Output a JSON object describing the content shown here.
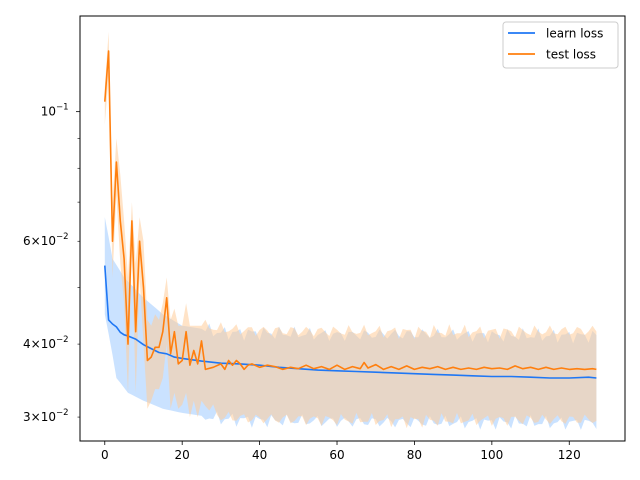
{
  "chart_data": {
    "type": "line",
    "title": "",
    "xlabel": "",
    "ylabel": "",
    "xlim": [
      -6.4,
      134.4
    ],
    "ylim": [
      0.0273,
      0.1458
    ],
    "yscale": "log",
    "grid": false,
    "legend": {
      "placement": "top-right",
      "entries": [
        "learn loss",
        "test loss"
      ]
    },
    "x_ticks": [
      0,
      20,
      40,
      60,
      80,
      100,
      120
    ],
    "x_tick_labels": [
      "0",
      "20",
      "40",
      "60",
      "80",
      "100",
      "120"
    ],
    "y_major_ticks": [
      0.1
    ],
    "y_minor_labeled_ticks": [
      {
        "value": 0.06,
        "mantissa": "6",
        "base": "10",
        "exp": "−2"
      },
      {
        "value": 0.04,
        "mantissa": "4",
        "base": "10",
        "exp": "−2"
      },
      {
        "value": 0.03,
        "mantissa": "3",
        "base": "10",
        "exp": "−2"
      }
    ],
    "y_minor_unlabeled_ticks": [
      0.05,
      0.07,
      0.08,
      0.09
    ],
    "y_major_label": {
      "base": "10",
      "exp": "−1"
    },
    "series": [
      {
        "name": "learn loss",
        "color": "#1f77f4",
        "band_color": "#b3d5ff",
        "points": [
          [
            0,
            0.0545
          ],
          [
            1,
            0.044
          ],
          [
            2,
            0.0433
          ],
          [
            3,
            0.0428
          ],
          [
            4,
            0.0419
          ],
          [
            5,
            0.0415
          ],
          [
            6,
            0.0413
          ],
          [
            8,
            0.0408
          ],
          [
            10,
            0.0399
          ],
          [
            12,
            0.0393
          ],
          [
            14,
            0.0387
          ],
          [
            16,
            0.0385
          ],
          [
            18,
            0.038
          ],
          [
            20,
            0.0378
          ],
          [
            25,
            0.0374
          ],
          [
            30,
            0.0371
          ],
          [
            35,
            0.037
          ],
          [
            40,
            0.0368
          ],
          [
            45,
            0.0365
          ],
          [
            50,
            0.0363
          ],
          [
            55,
            0.0361
          ],
          [
            60,
            0.036
          ],
          [
            65,
            0.0359
          ],
          [
            70,
            0.0358
          ],
          [
            75,
            0.0357
          ],
          [
            80,
            0.0356
          ],
          [
            85,
            0.0355
          ],
          [
            90,
            0.0354
          ],
          [
            95,
            0.0353
          ],
          [
            100,
            0.0352
          ],
          [
            105,
            0.0352
          ],
          [
            110,
            0.0351
          ],
          [
            115,
            0.035
          ],
          [
            120,
            0.035
          ],
          [
            125,
            0.0351
          ],
          [
            127,
            0.035
          ]
        ],
        "band_upper": [
          [
            0,
            0.066
          ],
          [
            2,
            0.056
          ],
          [
            5,
            0.052
          ],
          [
            10,
            0.048
          ],
          [
            15,
            0.045
          ],
          [
            20,
            0.043
          ],
          [
            25,
            0.0425
          ],
          [
            30,
            0.0418
          ],
          [
            40,
            0.0418
          ],
          [
            60,
            0.0415
          ],
          [
            80,
            0.0416
          ],
          [
            100,
            0.0414
          ],
          [
            127,
            0.0413
          ]
        ],
        "band_lower": [
          [
            0,
            0.045
          ],
          [
            3,
            0.035
          ],
          [
            6,
            0.033
          ],
          [
            10,
            0.032
          ],
          [
            15,
            0.031
          ],
          [
            20,
            0.0305
          ],
          [
            30,
            0.0298
          ],
          [
            40,
            0.0296
          ],
          [
            60,
            0.0295
          ],
          [
            80,
            0.0294
          ],
          [
            100,
            0.0294
          ],
          [
            127,
            0.0293
          ]
        ]
      },
      {
        "name": "test loss",
        "color": "#ff7f0e",
        "band_color": "#ffcc99",
        "points": [
          [
            0,
            0.104
          ],
          [
            1,
            0.127
          ],
          [
            2,
            0.06
          ],
          [
            3,
            0.082
          ],
          [
            4,
            0.065
          ],
          [
            5,
            0.056
          ],
          [
            6,
            0.04
          ],
          [
            7,
            0.065
          ],
          [
            8,
            0.042
          ],
          [
            9,
            0.06
          ],
          [
            10,
            0.05
          ],
          [
            11,
            0.0375
          ],
          [
            12,
            0.038
          ],
          [
            13,
            0.0395
          ],
          [
            14,
            0.0395
          ],
          [
            15,
            0.042
          ],
          [
            16,
            0.048
          ],
          [
            17,
            0.0385
          ],
          [
            18,
            0.042
          ],
          [
            19,
            0.037
          ],
          [
            20,
            0.0375
          ],
          [
            21,
            0.042
          ],
          [
            22,
            0.0368
          ],
          [
            23,
            0.039
          ],
          [
            24,
            0.037
          ],
          [
            25,
            0.0405
          ],
          [
            26,
            0.0362
          ],
          [
            28,
            0.0365
          ],
          [
            30,
            0.037
          ],
          [
            31,
            0.0362
          ],
          [
            32,
            0.0375
          ],
          [
            33,
            0.0368
          ],
          [
            34,
            0.0375
          ],
          [
            35,
            0.037
          ],
          [
            36,
            0.0362
          ],
          [
            37,
            0.0368
          ],
          [
            38,
            0.037
          ],
          [
            40,
            0.0365
          ],
          [
            42,
            0.0368
          ],
          [
            44,
            0.0366
          ],
          [
            46,
            0.0362
          ],
          [
            48,
            0.0365
          ],
          [
            50,
            0.0363
          ],
          [
            52,
            0.0368
          ],
          [
            54,
            0.0363
          ],
          [
            56,
            0.0366
          ],
          [
            58,
            0.0362
          ],
          [
            60,
            0.0368
          ],
          [
            62,
            0.0362
          ],
          [
            64,
            0.0366
          ],
          [
            66,
            0.0363
          ],
          [
            67,
            0.0372
          ],
          [
            68,
            0.0364
          ],
          [
            70,
            0.0369
          ],
          [
            72,
            0.0362
          ],
          [
            74,
            0.0366
          ],
          [
            76,
            0.0362
          ],
          [
            78,
            0.0367
          ],
          [
            80,
            0.0362
          ],
          [
            82,
            0.0365
          ],
          [
            84,
            0.0363
          ],
          [
            86,
            0.0366
          ],
          [
            88,
            0.0362
          ],
          [
            90,
            0.0365
          ],
          [
            92,
            0.0362
          ],
          [
            94,
            0.0364
          ],
          [
            96,
            0.0362
          ],
          [
            98,
            0.0365
          ],
          [
            100,
            0.0363
          ],
          [
            102,
            0.0364
          ],
          [
            104,
            0.0362
          ],
          [
            106,
            0.0367
          ],
          [
            108,
            0.0363
          ],
          [
            110,
            0.0365
          ],
          [
            112,
            0.0362
          ],
          [
            114,
            0.0365
          ],
          [
            116,
            0.0362
          ],
          [
            118,
            0.0364
          ],
          [
            120,
            0.0362
          ],
          [
            122,
            0.0363
          ],
          [
            124,
            0.0362
          ],
          [
            126,
            0.0363
          ],
          [
            127,
            0.0362
          ]
        ],
        "band_upper": [
          [
            0,
            0.11
          ],
          [
            1,
            0.137
          ],
          [
            2,
            0.07
          ],
          [
            3,
            0.09
          ],
          [
            4,
            0.078
          ],
          [
            5,
            0.065
          ],
          [
            6,
            0.052
          ],
          [
            7,
            0.07
          ],
          [
            8,
            0.055
          ],
          [
            9,
            0.066
          ],
          [
            10,
            0.06
          ],
          [
            11,
            0.044
          ],
          [
            12,
            0.043
          ],
          [
            13,
            0.045
          ],
          [
            14,
            0.044
          ],
          [
            15,
            0.047
          ],
          [
            16,
            0.052
          ],
          [
            17,
            0.044
          ],
          [
            18,
            0.046
          ],
          [
            19,
            0.043
          ],
          [
            20,
            0.043
          ],
          [
            21,
            0.047
          ],
          [
            22,
            0.043
          ],
          [
            23,
            0.043
          ],
          [
            24,
            0.043
          ],
          [
            25,
            0.043
          ],
          [
            30,
            0.0425
          ],
          [
            40,
            0.0422
          ],
          [
            60,
            0.0421
          ],
          [
            80,
            0.042
          ],
          [
            100,
            0.042
          ],
          [
            127,
            0.0422
          ]
        ],
        "band_lower": [
          [
            0,
            0.095
          ],
          [
            1,
            0.115
          ],
          [
            2,
            0.052
          ],
          [
            3,
            0.072
          ],
          [
            4,
            0.055
          ],
          [
            5,
            0.047
          ],
          [
            6,
            0.033
          ],
          [
            7,
            0.058
          ],
          [
            8,
            0.033
          ],
          [
            9,
            0.052
          ],
          [
            10,
            0.04
          ],
          [
            11,
            0.031
          ],
          [
            12,
            0.032
          ],
          [
            13,
            0.0335
          ],
          [
            14,
            0.0335
          ],
          [
            15,
            0.035
          ],
          [
            16,
            0.04
          ],
          [
            17,
            0.031
          ],
          [
            18,
            0.033
          ],
          [
            19,
            0.031
          ],
          [
            20,
            0.0315
          ],
          [
            21,
            0.033
          ],
          [
            22,
            0.03
          ],
          [
            23,
            0.032
          ],
          [
            24,
            0.03
          ],
          [
            25,
            0.032
          ],
          [
            30,
            0.03
          ],
          [
            40,
            0.0298
          ],
          [
            60,
            0.0297
          ],
          [
            80,
            0.0296
          ],
          [
            100,
            0.0297
          ],
          [
            127,
            0.0297
          ]
        ]
      }
    ]
  }
}
